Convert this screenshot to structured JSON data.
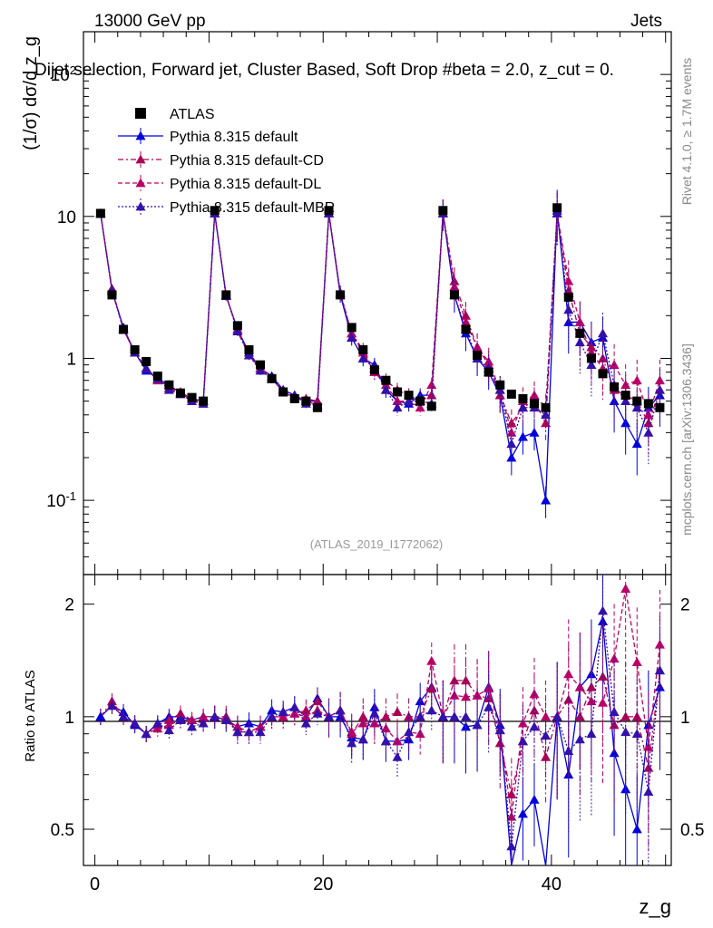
{
  "header": {
    "left": "13000 GeV pp",
    "right": "Jets"
  },
  "side_labels": {
    "rivet": "Rivet 4.1.0, ≥ 1.7M events",
    "mcplots": "mcplots.cern.ch [arXiv:1306.3436]"
  },
  "colors": {
    "atlas": "#000000",
    "default": "#0000dd",
    "cd": "#aa0055",
    "dl": "#bb0066",
    "mbr": "#3311aa",
    "watermark": "#999999"
  },
  "chart_data": [
    {
      "type": "line",
      "panel": "main",
      "title": "Dijet selection, Forward jet, Cluster Based, Soft Drop #beta = 2.0, z_cut = 0.",
      "ylabel": "(1/σ) dσ/d z_g",
      "yscale": "log",
      "ylim": [
        0.03,
        200
      ],
      "xlim": [
        -1,
        50.5
      ],
      "ytick_labels": [
        "10^-1",
        "1",
        "10",
        "10^2"
      ],
      "watermark": "(ATLAS_2019_I1772062)",
      "x": [
        0.5,
        1.5,
        2.5,
        3.5,
        4.5,
        5.5,
        6.5,
        7.5,
        8.5,
        9.5,
        10.5,
        11.5,
        12.5,
        13.5,
        14.5,
        15.5,
        16.5,
        17.5,
        18.5,
        19.5,
        20.5,
        21.5,
        22.5,
        23.5,
        24.5,
        25.5,
        26.5,
        27.5,
        28.5,
        29.5,
        30.5,
        31.5,
        32.5,
        33.5,
        34.5,
        35.5,
        36.5,
        37.5,
        38.5,
        39.5,
        40.5,
        41.5,
        42.5,
        43.5,
        44.5,
        45.5,
        46.5,
        47.5,
        48.5,
        49.5
      ],
      "series": [
        {
          "name": "ATLAS",
          "marker": "square",
          "values": [
            10.5,
            2.8,
            1.6,
            1.15,
            0.95,
            0.75,
            0.65,
            0.57,
            0.53,
            0.5,
            11.0,
            2.8,
            1.7,
            1.15,
            0.9,
            0.72,
            0.58,
            0.52,
            0.5,
            0.45,
            11.0,
            2.8,
            1.65,
            1.15,
            0.83,
            0.7,
            0.58,
            0.55,
            0.5,
            0.46,
            11.0,
            2.8,
            1.6,
            1.05,
            0.8,
            0.65,
            0.56,
            0.52,
            0.48,
            0.45,
            11.5,
            2.7,
            1.5,
            1.0,
            0.78,
            0.63,
            0.55,
            0.5,
            0.48,
            0.45
          ]
        },
        {
          "name": "Pythia 8.315 default",
          "marker": "triangle",
          "dash": "solid",
          "values": [
            10.5,
            3.0,
            1.65,
            1.1,
            0.82,
            0.72,
            0.65,
            0.57,
            0.52,
            0.5,
            10.5,
            2.75,
            1.6,
            1.1,
            0.85,
            0.75,
            0.6,
            0.55,
            0.5,
            0.5,
            10.5,
            2.8,
            1.4,
            1.0,
            0.9,
            0.6,
            0.5,
            0.48,
            0.55,
            0.55,
            10.5,
            2.8,
            1.5,
            1.0,
            0.8,
            0.55,
            0.2,
            0.28,
            0.3,
            0.1,
            11.0,
            1.8,
            1.8,
            1.3,
            1.4,
            0.5,
            0.35,
            0.25,
            0.45,
            0.55
          ]
        },
        {
          "name": "Pythia 8.315 default-CD",
          "marker": "triangle",
          "dash": "dashdot",
          "values": [
            10.5,
            3.1,
            1.6,
            1.1,
            0.85,
            0.72,
            0.62,
            0.58,
            0.52,
            0.48,
            10.5,
            2.8,
            1.55,
            1.05,
            0.85,
            0.72,
            0.58,
            0.53,
            0.52,
            0.5,
            10.5,
            2.9,
            1.5,
            1.15,
            0.8,
            0.7,
            0.6,
            0.55,
            0.5,
            0.55,
            10.5,
            3.5,
            2.0,
            1.2,
            0.9,
            0.55,
            0.35,
            0.45,
            0.5,
            0.35,
            10.5,
            3.0,
            1.5,
            1.2,
            1.0,
            0.6,
            0.55,
            0.5,
            0.35,
            0.6
          ]
        },
        {
          "name": "Pythia 8.315 default-DL",
          "marker": "triangle",
          "dash": "dashed",
          "values": [
            10.5,
            3.0,
            1.6,
            1.1,
            0.85,
            0.7,
            0.62,
            0.56,
            0.52,
            0.5,
            10.5,
            2.75,
            1.6,
            1.05,
            0.85,
            0.72,
            0.58,
            0.53,
            0.5,
            0.47,
            10.5,
            2.9,
            1.5,
            1.1,
            0.8,
            0.65,
            0.5,
            0.5,
            0.45,
            0.65,
            10.5,
            3.2,
            1.8,
            1.2,
            0.95,
            0.6,
            0.3,
            0.5,
            0.55,
            0.45,
            10.5,
            3.5,
            1.8,
            1.1,
            0.85,
            0.9,
            0.65,
            0.7,
            0.4,
            0.7
          ]
        },
        {
          "name": "Pythia 8.315 default-MBR",
          "marker": "triangle",
          "dash": "dotted",
          "values": [
            10.5,
            3.0,
            1.6,
            1.1,
            0.85,
            0.72,
            0.6,
            0.56,
            0.5,
            0.48,
            10.5,
            2.75,
            1.55,
            1.05,
            0.82,
            0.72,
            0.6,
            0.55,
            0.48,
            0.46,
            10.5,
            2.9,
            1.4,
            1.0,
            0.85,
            0.6,
            0.45,
            0.5,
            0.5,
            0.48,
            10.5,
            2.8,
            1.6,
            1.0,
            0.85,
            0.6,
            0.25,
            0.45,
            0.45,
            0.4,
            10.5,
            2.2,
            1.3,
            0.9,
            1.5,
            0.65,
            0.5,
            0.45,
            0.3,
            0.6
          ]
        }
      ]
    },
    {
      "type": "line",
      "panel": "ratio",
      "xlabel": "z_g",
      "ylabel": "Ratio to ATLAS",
      "yscale": "log",
      "ylim": [
        0.4,
        2.4
      ],
      "xlim": [
        -1,
        50.5
      ],
      "ytick_labels": [
        "0.5",
        "1",
        "2"
      ],
      "xtick_labels": [
        "0",
        "20",
        "40"
      ],
      "x": [
        0.5,
        1.5,
        2.5,
        3.5,
        4.5,
        5.5,
        6.5,
        7.5,
        8.5,
        9.5,
        10.5,
        11.5,
        12.5,
        13.5,
        14.5,
        15.5,
        16.5,
        17.5,
        18.5,
        19.5,
        20.5,
        21.5,
        22.5,
        23.5,
        24.5,
        25.5,
        26.5,
        27.5,
        28.5,
        29.5,
        30.5,
        31.5,
        32.5,
        33.5,
        34.5,
        35.5,
        36.5,
        37.5,
        38.5,
        39.5,
        40.5,
        41.5,
        42.5,
        43.5,
        44.5,
        45.5,
        46.5,
        47.5,
        48.5,
        49.5
      ],
      "series": [
        {
          "name": "Pythia 8.315 default",
          "values": [
            1.0,
            1.07,
            1.03,
            0.95,
            0.9,
            0.96,
            1.0,
            1.0,
            0.98,
            1.0,
            1.0,
            0.98,
            0.94,
            0.96,
            0.94,
            1.04,
            1.03,
            1.06,
            1.0,
            1.12,
            1.0,
            1.0,
            0.88,
            0.87,
            1.06,
            0.86,
            0.86,
            0.87,
            1.1,
            1.2,
            1.0,
            1.0,
            0.94,
            0.95,
            1.2,
            0.95,
            0.35,
            0.55,
            0.6,
            0.22,
            1.0,
            0.7,
            1.2,
            1.3,
            1.8,
            0.8,
            0.64,
            0.5,
            0.95,
            1.2
          ]
        },
        {
          "name": "Pythia 8.315 default-CD",
          "values": [
            1.0,
            1.1,
            1.0,
            0.96,
            0.9,
            0.95,
            0.98,
            1.02,
            0.98,
            0.96,
            1.0,
            1.0,
            0.91,
            0.91,
            0.94,
            1.0,
            1.0,
            1.02,
            1.04,
            1.1,
            1.0,
            1.04,
            0.9,
            1.0,
            0.96,
            1.0,
            1.03,
            1.0,
            1.0,
            1.19,
            1.0,
            1.25,
            1.25,
            1.14,
            1.12,
            0.85,
            0.62,
            0.86,
            1.04,
            0.78,
            1.0,
            1.11,
            1.0,
            1.2,
            1.28,
            0.95,
            1.0,
            1.0,
            0.73,
            1.33
          ]
        },
        {
          "name": "Pythia 8.315 default-DL",
          "values": [
            1.0,
            1.07,
            1.0,
            0.96,
            0.9,
            0.93,
            0.95,
            0.98,
            0.98,
            1.0,
            1.0,
            0.98,
            0.94,
            0.91,
            0.94,
            1.0,
            1.0,
            1.02,
            1.0,
            1.04,
            1.0,
            1.04,
            0.91,
            0.96,
            0.96,
            0.93,
            0.86,
            0.91,
            0.9,
            1.41,
            1.0,
            1.14,
            1.13,
            1.14,
            1.19,
            0.92,
            0.54,
            0.96,
            1.15,
            1.0,
            1.0,
            1.3,
            1.2,
            1.1,
            1.09,
            1.43,
            2.2,
            1.4,
            0.83,
            1.56
          ]
        },
        {
          "name": "Pythia 8.315 default-MBR",
          "values": [
            1.0,
            1.07,
            1.0,
            0.96,
            0.9,
            0.96,
            0.92,
            0.98,
            0.94,
            0.96,
            1.0,
            0.98,
            0.91,
            0.91,
            0.91,
            1.0,
            1.03,
            1.06,
            0.96,
            1.02,
            1.0,
            1.04,
            0.85,
            0.87,
            1.02,
            0.86,
            0.78,
            0.91,
            1.0,
            1.04,
            1.0,
            1.0,
            1.0,
            0.95,
            1.06,
            0.92,
            0.45,
            0.86,
            0.94,
            0.89,
            1.0,
            0.81,
            0.87,
            0.9,
            1.92,
            1.03,
            0.91,
            0.9,
            0.63,
            1.33
          ]
        }
      ]
    }
  ],
  "legend": [
    {
      "label": "ATLAS"
    },
    {
      "label": "Pythia 8.315 default"
    },
    {
      "label": "Pythia 8.315 default-CD"
    },
    {
      "label": "Pythia 8.315 default-DL"
    },
    {
      "label": "Pythia 8.315 default-MBR"
    }
  ]
}
